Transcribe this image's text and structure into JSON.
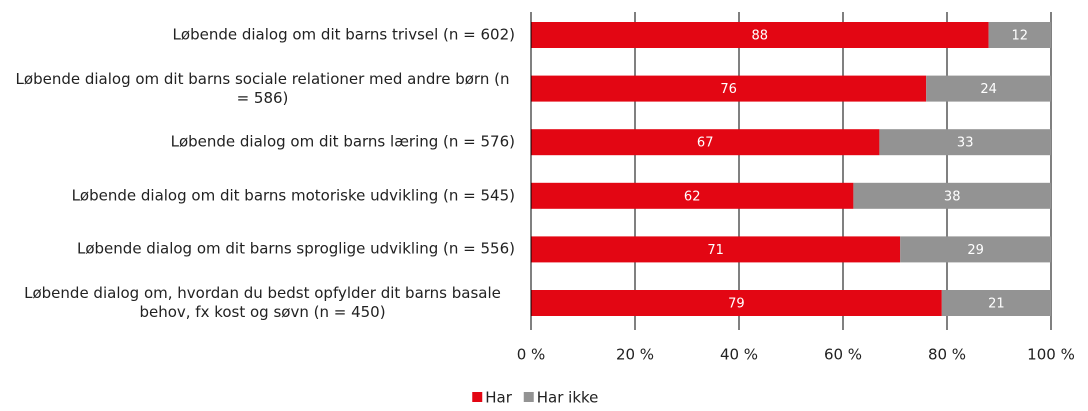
{
  "chart_data": {
    "type": "stacked_barh",
    "categories": [
      "Løbende dialog om dit barns trivsel (n = 602)",
      "Løbende dialog om dit barns sociale relationer med andre børn (n = 586)",
      "Løbende dialog om dit barns læring (n = 576)",
      "Løbende dialog om dit barns motoriske udvikling (n = 545)",
      "Løbende dialog om dit barns sproglige udvikling (n = 556)",
      "Løbende dialog om, hvordan du bedst opfylder dit barns basale behov, fx kost og søvn (n = 450)"
    ],
    "series": [
      {
        "name": "Har",
        "color": "#e30613",
        "values": [
          88,
          76,
          67,
          62,
          71,
          79
        ]
      },
      {
        "name": "Har ikke",
        "color": "#939393",
        "values": [
          12,
          24,
          33,
          38,
          29,
          21
        ]
      }
    ],
    "xlim": [
      0,
      100
    ],
    "xticks": [
      {
        "value": 0,
        "label": "0 %"
      },
      {
        "value": 20,
        "label": "20 %"
      },
      {
        "value": 40,
        "label": "40 %"
      },
      {
        "value": 60,
        "label": "60 %"
      },
      {
        "value": 80,
        "label": "80 %"
      },
      {
        "value": 100,
        "label": "100 %"
      }
    ],
    "grid": true,
    "legend": "bottom"
  }
}
